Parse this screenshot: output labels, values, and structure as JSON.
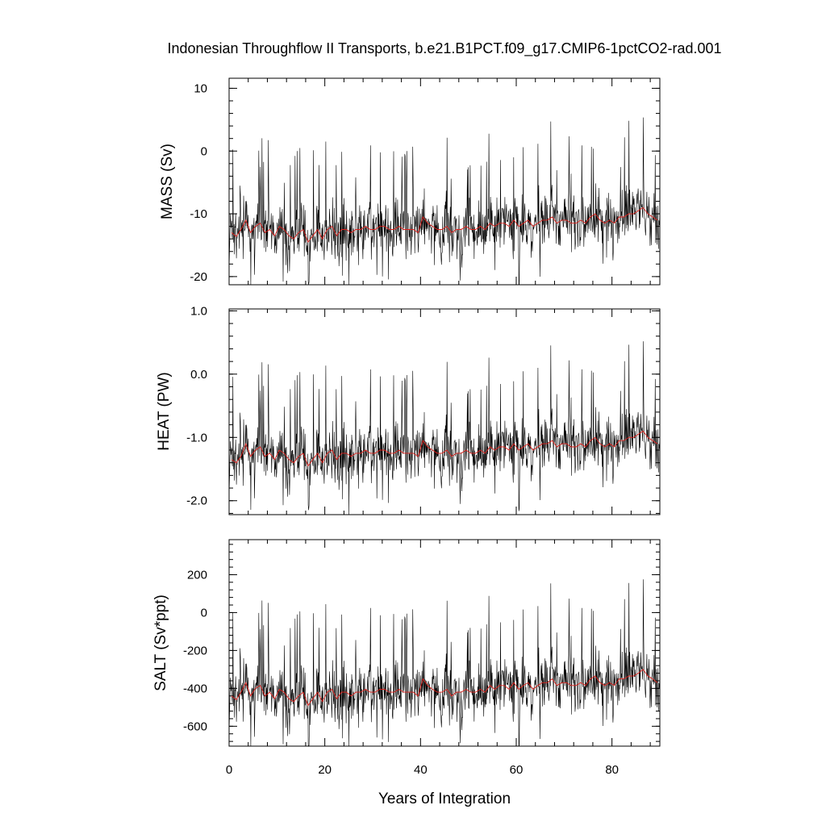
{
  "chart_data": {
    "type": "line",
    "title": "Indonesian Throughflow II Transports, b.e21.B1PCT.f09_g17.CMIP6-1pctCO2-rad.001",
    "xlabel": "Years of Integration",
    "xlim": [
      0,
      90
    ],
    "x_ticks": [
      0,
      20,
      40,
      60,
      80
    ],
    "x_tick_labels": [
      "0",
      "20",
      "40",
      "60",
      "80"
    ],
    "colors": {
      "monthly": "#000000",
      "annual_mean": "#e0201b"
    },
    "panels": [
      {
        "name": "mass",
        "ylabel": "MASS (Sv)",
        "ylim": [
          -21.3,
          11.6
        ],
        "y_ticks": [
          10,
          0,
          -10,
          -20
        ],
        "y_tick_labels": [
          "10",
          "0",
          "-10",
          "-20"
        ],
        "annual_years": [
          0.5,
          1.5,
          2.5,
          3.5,
          4.5,
          5.5,
          6.5,
          7.5,
          8.5,
          9.5,
          10.5,
          11.5,
          12.5,
          13.5,
          14.5,
          15.5,
          16.5,
          17.5,
          18.5,
          19.5,
          20.5,
          21.5,
          22.5,
          23.5,
          24.5,
          25.5,
          26.5,
          27.5,
          28.5,
          29.5,
          30.5,
          31.5,
          32.5,
          33.5,
          34.5,
          35.5,
          36.5,
          37.5,
          38.5,
          39.5,
          40.5,
          41.5,
          42.5,
          43.5,
          44.5,
          45.5,
          46.5,
          47.5,
          48.5,
          49.5,
          50.5,
          51.5,
          52.5,
          53.5,
          54.5,
          55.5,
          56.5,
          57.5,
          58.5,
          59.5,
          60.5,
          61.5,
          62.5,
          63.5,
          64.5,
          65.5,
          66.5,
          67.5,
          68.5,
          69.5,
          70.5,
          71.5,
          72.5,
          73.5,
          74.5,
          75.5,
          76.5,
          77.5,
          78.5,
          79.5,
          80.5,
          81.5,
          82.5,
          83.5,
          84.5,
          85.5,
          86.5,
          87.5,
          88.5,
          89.5
        ],
        "annual_mean": [
          -13.0,
          -13.6,
          -12.5,
          -11.0,
          -13.0,
          -12.0,
          -11.5,
          -13.0,
          -12.5,
          -13.5,
          -12.0,
          -12.5,
          -13.5,
          -14.0,
          -13.0,
          -12.5,
          -14.5,
          -13.5,
          -12.5,
          -14.0,
          -12.5,
          -12.0,
          -13.5,
          -12.5,
          -12.5,
          -13.0,
          -12.5,
          -12.5,
          -12.0,
          -12.5,
          -12.5,
          -12.0,
          -12.0,
          -12.5,
          -12.5,
          -12.0,
          -12.5,
          -12.5,
          -12.5,
          -13.0,
          -10.5,
          -11.5,
          -12.0,
          -12.5,
          -12.5,
          -12.0,
          -13.0,
          -12.5,
          -12.5,
          -12.0,
          -12.5,
          -12.5,
          -12.0,
          -12.5,
          -11.5,
          -12.0,
          -11.5,
          -11.5,
          -12.0,
          -11.0,
          -12.0,
          -11.5,
          -11.0,
          -12.0,
          -11.5,
          -11.0,
          -11.0,
          -10.5,
          -11.5,
          -11.0,
          -11.0,
          -11.5,
          -11.5,
          -11.0,
          -11.5,
          -10.5,
          -10.0,
          -11.0,
          -11.5,
          -11.0,
          -11.5,
          -10.5,
          -10.5,
          -10.0,
          -10.0,
          -9.5,
          -9.0,
          -10.0,
          -10.5,
          -11.0
        ]
      },
      {
        "name": "heat",
        "ylabel": "HEAT (PW)",
        "ylim": [
          -2.22,
          1.03
        ],
        "y_ticks": [
          1.0,
          0.0,
          -1.0,
          -2.0
        ],
        "y_tick_labels": [
          "1.0",
          "0.0",
          "-1.0",
          "-2.0"
        ],
        "annual_years": [
          0.5,
          1.5,
          2.5,
          3.5,
          4.5,
          5.5,
          6.5,
          7.5,
          8.5,
          9.5,
          10.5,
          11.5,
          12.5,
          13.5,
          14.5,
          15.5,
          16.5,
          17.5,
          18.5,
          19.5,
          20.5,
          21.5,
          22.5,
          23.5,
          24.5,
          25.5,
          26.5,
          27.5,
          28.5,
          29.5,
          30.5,
          31.5,
          32.5,
          33.5,
          34.5,
          35.5,
          36.5,
          37.5,
          38.5,
          39.5,
          40.5,
          41.5,
          42.5,
          43.5,
          44.5,
          45.5,
          46.5,
          47.5,
          48.5,
          49.5,
          50.5,
          51.5,
          52.5,
          53.5,
          54.5,
          55.5,
          56.5,
          57.5,
          58.5,
          59.5,
          60.5,
          61.5,
          62.5,
          63.5,
          64.5,
          65.5,
          66.5,
          67.5,
          68.5,
          69.5,
          70.5,
          71.5,
          72.5,
          73.5,
          74.5,
          75.5,
          76.5,
          77.5,
          78.5,
          79.5,
          80.5,
          81.5,
          82.5,
          83.5,
          84.5,
          85.5,
          86.5,
          87.5,
          88.5,
          89.5
        ],
        "annual_mean": [
          -1.35,
          -1.4,
          -1.3,
          -1.1,
          -1.3,
          -1.2,
          -1.15,
          -1.3,
          -1.25,
          -1.35,
          -1.2,
          -1.25,
          -1.35,
          -1.4,
          -1.3,
          -1.25,
          -1.45,
          -1.35,
          -1.25,
          -1.4,
          -1.25,
          -1.2,
          -1.35,
          -1.25,
          -1.25,
          -1.3,
          -1.25,
          -1.25,
          -1.2,
          -1.25,
          -1.25,
          -1.2,
          -1.2,
          -1.25,
          -1.25,
          -1.2,
          -1.25,
          -1.25,
          -1.25,
          -1.3,
          -1.05,
          -1.15,
          -1.2,
          -1.25,
          -1.25,
          -1.2,
          -1.3,
          -1.25,
          -1.25,
          -1.2,
          -1.25,
          -1.25,
          -1.2,
          -1.25,
          -1.15,
          -1.2,
          -1.15,
          -1.15,
          -1.2,
          -1.1,
          -1.2,
          -1.15,
          -1.1,
          -1.2,
          -1.15,
          -1.1,
          -1.1,
          -1.05,
          -1.15,
          -1.1,
          -1.1,
          -1.15,
          -1.15,
          -1.1,
          -1.15,
          -1.05,
          -1.0,
          -1.1,
          -1.15,
          -1.1,
          -1.15,
          -1.05,
          -1.05,
          -1.0,
          -1.0,
          -0.95,
          -0.9,
          -1.0,
          -1.05,
          -1.1
        ]
      },
      {
        "name": "salt",
        "ylabel": "SALT (Sv*ppt)",
        "ylim": [
          -705,
          385
        ],
        "y_ticks": [
          200,
          0,
          -200,
          -400,
          -600
        ],
        "y_tick_labels": [
          "200",
          "0",
          "-200",
          "-400",
          "-600"
        ],
        "annual_years": [
          0.5,
          1.5,
          2.5,
          3.5,
          4.5,
          5.5,
          6.5,
          7.5,
          8.5,
          9.5,
          10.5,
          11.5,
          12.5,
          13.5,
          14.5,
          15.5,
          16.5,
          17.5,
          18.5,
          19.5,
          20.5,
          21.5,
          22.5,
          23.5,
          24.5,
          25.5,
          26.5,
          27.5,
          28.5,
          29.5,
          30.5,
          31.5,
          32.5,
          33.5,
          34.5,
          35.5,
          36.5,
          37.5,
          38.5,
          39.5,
          40.5,
          41.5,
          42.5,
          43.5,
          44.5,
          45.5,
          46.5,
          47.5,
          48.5,
          49.5,
          50.5,
          51.5,
          52.5,
          53.5,
          54.5,
          55.5,
          56.5,
          57.5,
          58.5,
          59.5,
          60.5,
          61.5,
          62.5,
          63.5,
          64.5,
          65.5,
          66.5,
          67.5,
          68.5,
          69.5,
          70.5,
          71.5,
          72.5,
          73.5,
          74.5,
          75.5,
          76.5,
          77.5,
          78.5,
          79.5,
          80.5,
          81.5,
          82.5,
          83.5,
          84.5,
          85.5,
          86.5,
          87.5,
          88.5,
          89.5
        ],
        "annual_mean": [
          -440,
          -460,
          -420,
          -370,
          -440,
          -400,
          -385,
          -440,
          -420,
          -455,
          -405,
          -420,
          -455,
          -470,
          -440,
          -420,
          -490,
          -455,
          -420,
          -470,
          -420,
          -405,
          -455,
          -420,
          -420,
          -440,
          -420,
          -420,
          -405,
          -420,
          -420,
          -405,
          -405,
          -420,
          -420,
          -405,
          -420,
          -420,
          -420,
          -440,
          -350,
          -385,
          -405,
          -420,
          -420,
          -405,
          -440,
          -420,
          -420,
          -405,
          -420,
          -420,
          -405,
          -420,
          -385,
          -405,
          -385,
          -385,
          -405,
          -370,
          -405,
          -385,
          -370,
          -405,
          -385,
          -370,
          -370,
          -350,
          -385,
          -370,
          -370,
          -385,
          -385,
          -370,
          -385,
          -350,
          -335,
          -370,
          -385,
          -370,
          -385,
          -350,
          -350,
          -335,
          -335,
          -320,
          -300,
          -335,
          -350,
          -370
        ]
      }
    ]
  }
}
